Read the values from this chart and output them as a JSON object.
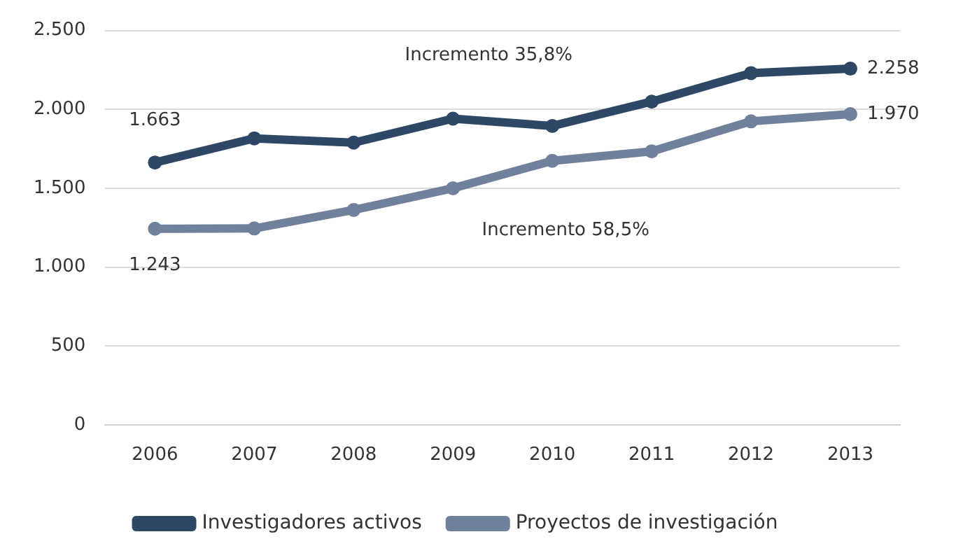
{
  "chart_data": {
    "type": "line",
    "categories": [
      "2006",
      "2007",
      "2008",
      "2009",
      "2010",
      "2011",
      "2012",
      "2013"
    ],
    "series": [
      {
        "name": "Investigadores activos",
        "color": "#2e4766",
        "values": [
          1663,
          1816,
          1789,
          1941,
          1895,
          2049,
          2230,
          2258
        ],
        "value_labels": [
          "1.663",
          null,
          null,
          null,
          null,
          null,
          null,
          "2.258"
        ]
      },
      {
        "name": "Proyectos de investigación",
        "color": "#6f819b",
        "values": [
          1243,
          1245,
          1362,
          1500,
          1674,
          1734,
          1924,
          1970
        ],
        "value_labels": [
          "1.243",
          null,
          null,
          null,
          null,
          null,
          null,
          "1.970"
        ]
      }
    ],
    "ylim": [
      0,
      2500
    ],
    "yticks": [
      0,
      500,
      {
        "value": 1000,
        "label": "1.000"
      },
      {
        "value": 1500,
        "label": "1.500"
      },
      {
        "value": 2000,
        "label": "2.000"
      },
      {
        "value": 2500,
        "label": "2.500"
      }
    ],
    "annotations": [
      "Incremento 35,8%",
      "Incremento 58,5%"
    ],
    "grid": "y",
    "legend": "bottom",
    "marker": "circle",
    "line_style": "solid"
  }
}
